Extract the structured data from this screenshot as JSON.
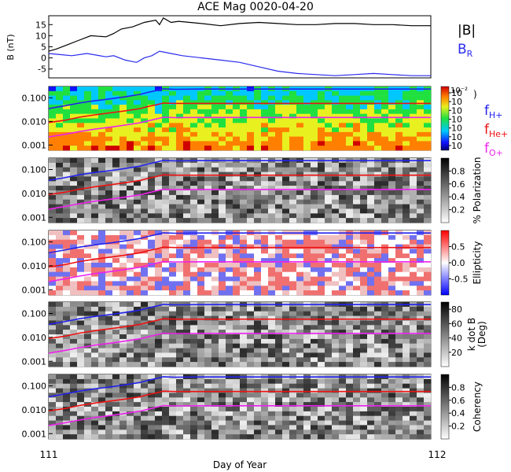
{
  "title": "ACE Mag 0020-04-20",
  "x_axis": {
    "label": "Day of Year",
    "ticks": [
      "111",
      "112"
    ]
  },
  "colors": {
    "B_total": "#000000",
    "B_R": "#2a2aee",
    "f_H": "#2222ee",
    "f_He": "#ee1111",
    "f_O": "#ee22ee"
  },
  "chart_data": [
    {
      "type": "line",
      "panel": "magnetic-field",
      "ylabel": "B (nT)",
      "yticks": [
        "15",
        "10",
        "5",
        "0",
        "-5"
      ],
      "ylim": [
        -9,
        19
      ],
      "xlim": [
        111,
        112
      ],
      "legend": [
        {
          "text": "|B|",
          "color": "#000000"
        },
        {
          "text": "B",
          "sub": "R",
          "color": "#2a2aee"
        }
      ],
      "series": [
        {
          "name": "|B|",
          "x": [
            111.0,
            111.02,
            111.05,
            111.08,
            111.11,
            111.15,
            111.17,
            111.19,
            111.22,
            111.25,
            111.28,
            111.29,
            111.3,
            111.32,
            111.34,
            111.37,
            111.4,
            111.45,
            111.5,
            111.55,
            111.6,
            111.65,
            111.7,
            111.75,
            111.8,
            111.85,
            111.9,
            111.95,
            112.0
          ],
          "values": [
            3,
            4,
            6,
            8,
            10,
            9.5,
            11,
            13,
            14,
            16,
            17,
            15,
            18,
            16,
            16.5,
            16,
            15.5,
            14.5,
            15.5,
            16,
            15.5,
            15,
            15,
            15.5,
            15.5,
            15,
            15,
            14.5,
            14.5
          ]
        },
        {
          "name": "B_R",
          "x": [
            111.0,
            111.03,
            111.06,
            111.1,
            111.15,
            111.17,
            111.2,
            111.23,
            111.25,
            111.27,
            111.29,
            111.32,
            111.35,
            111.4,
            111.45,
            111.5,
            111.55,
            111.6,
            111.65,
            111.7,
            111.75,
            111.8,
            111.85,
            111.9,
            111.95,
            112.0
          ],
          "values": [
            2,
            1.5,
            1,
            2,
            0.5,
            1,
            -1,
            -2,
            0,
            1,
            3,
            2,
            1,
            0,
            -1,
            -2,
            -4,
            -6,
            -7,
            -7.5,
            -8,
            -7.5,
            -7,
            -7.5,
            -8,
            -8
          ]
        }
      ]
    },
    {
      "type": "heatmap",
      "panel": "power",
      "yticks": [
        "0.100",
        "0.010",
        "0.001"
      ],
      "scale": "log",
      "colorbar": {
        "ticks": [
          "10",
          "10",
          "10",
          "10",
          "10",
          "10",
          "10"
        ],
        "top_label": "10⁻²",
        "unit": ")"
      },
      "legend": [
        {
          "text": "f",
          "sub": "H+",
          "color": "#2222ee"
        },
        {
          "text": "f",
          "sub": "He+",
          "color": "#ee1111"
        },
        {
          "text": "f",
          "sub": "O+",
          "color": "#ee22ee"
        }
      ]
    },
    {
      "type": "heatmap",
      "panel": "polarization",
      "yticks": [
        "0.100",
        "0.010",
        "0.001"
      ],
      "scale": "log",
      "colorbar": {
        "label": "% Polarization",
        "ticks": [
          "0.8",
          "0.6",
          "0.4",
          "0.2"
        ],
        "range": [
          0,
          1
        ]
      }
    },
    {
      "type": "heatmap",
      "panel": "ellipticity",
      "yticks": [
        "0.100",
        "0.010",
        "0.001"
      ],
      "scale": "log",
      "colorbar": {
        "label": "Ellipticity",
        "ticks": [
          "0.5",
          "0.0",
          "-0.5"
        ],
        "range": [
          -1,
          1
        ]
      }
    },
    {
      "type": "heatmap",
      "panel": "k-dot-b",
      "yticks": [
        "0.100",
        "0.010",
        "0.001"
      ],
      "scale": "log",
      "colorbar": {
        "label_line1": "k dot B",
        "label_line2": "(Deg)",
        "ticks": [
          "80",
          "60",
          "40",
          "20"
        ],
        "range": [
          0,
          90
        ]
      }
    },
    {
      "type": "heatmap",
      "panel": "coherency",
      "yticks": [
        "0.100",
        "0.010",
        "0.001"
      ],
      "scale": "log",
      "colorbar": {
        "label": "Coherency",
        "ticks": [
          "0.8",
          "0.6",
          "0.4",
          "0.2"
        ],
        "range": [
          0,
          1
        ]
      }
    }
  ],
  "gyro_lines": {
    "x": [
      111.0,
      111.04,
      111.08,
      111.12,
      111.16,
      111.2,
      111.24,
      111.26,
      111.28,
      111.3,
      111.33,
      111.4,
      111.5,
      111.6,
      111.7,
      111.8,
      111.9,
      112.0
    ],
    "f_H": [
      0.035,
      0.045,
      0.06,
      0.075,
      0.09,
      0.11,
      0.14,
      0.17,
      0.2,
      0.24,
      0.23,
      0.235,
      0.235,
      0.235,
      0.235,
      0.235,
      0.235,
      0.235
    ],
    "f_He": [
      0.009,
      0.011,
      0.015,
      0.019,
      0.023,
      0.028,
      0.035,
      0.043,
      0.05,
      0.06,
      0.058,
      0.058,
      0.058,
      0.058,
      0.058,
      0.058,
      0.058,
      0.058
    ],
    "f_O": [
      0.0022,
      0.0028,
      0.0037,
      0.0047,
      0.0057,
      0.007,
      0.0088,
      0.0105,
      0.0125,
      0.015,
      0.0145,
      0.0147,
      0.0147,
      0.0147,
      0.0147,
      0.0147,
      0.0147,
      0.0147
    ]
  }
}
